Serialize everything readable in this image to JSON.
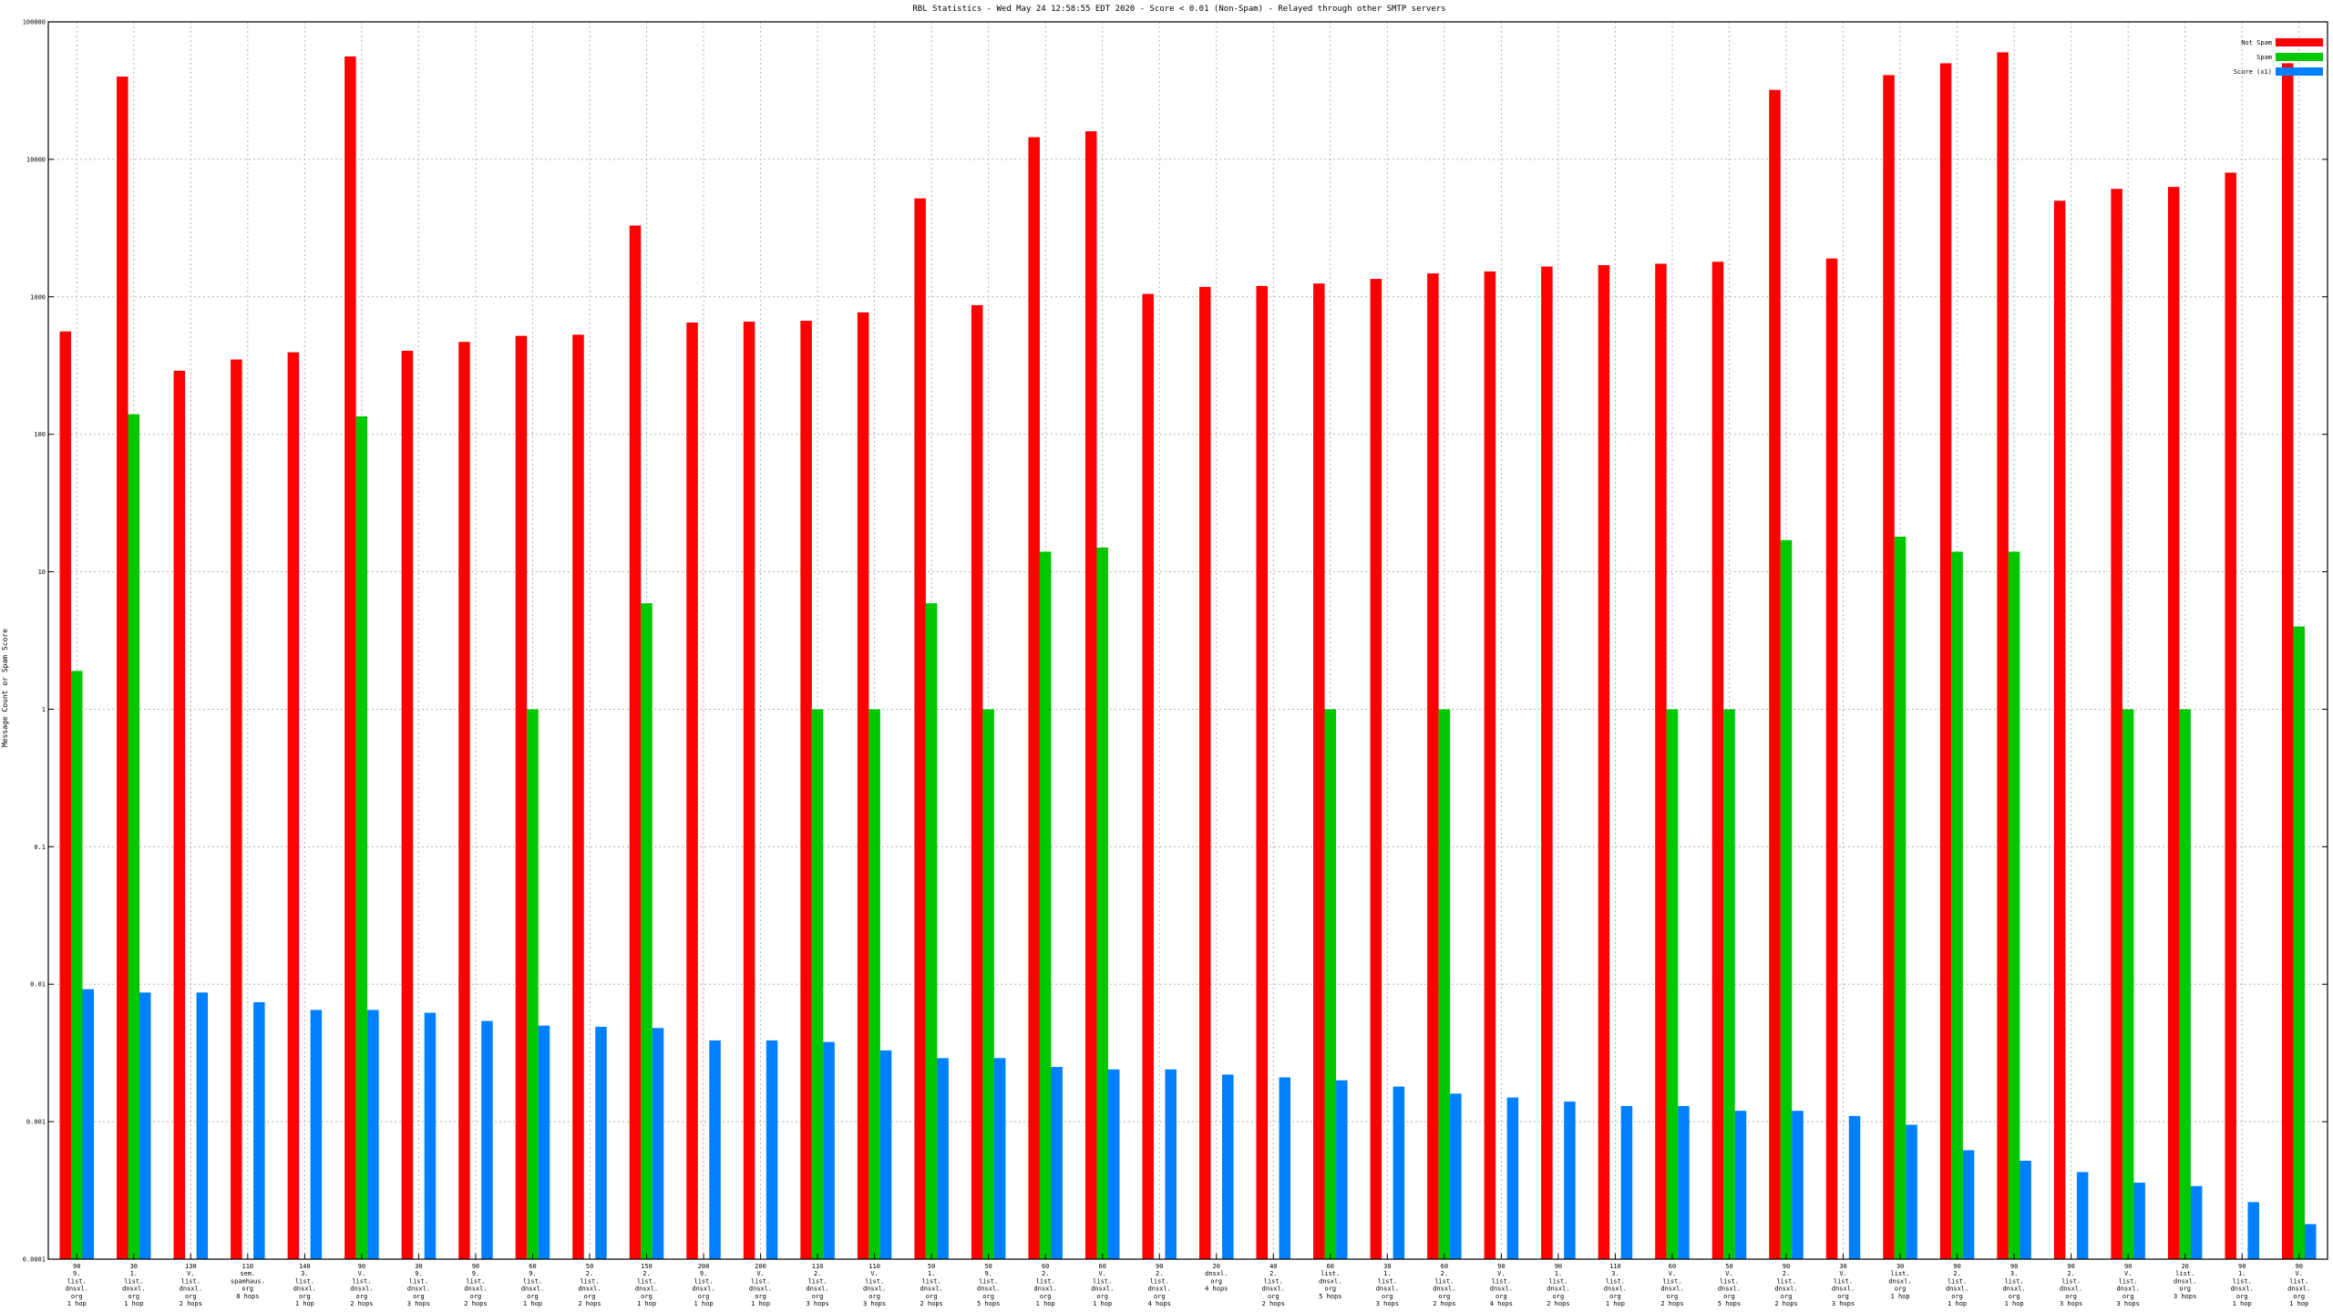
{
  "chart_data": {
    "type": "bar",
    "title": "RBL Statistics - Wed May 24 12:58:55 EDT 2020 - Score < 0.01 (Non-Spam) - Relayed through other SMTP servers",
    "ylabel": "Message Count or Spam Score",
    "xlabel": "",
    "yscale": "log",
    "ylim": [
      0.0001,
      100000
    ],
    "yticks": [
      "0.0001",
      "0.001",
      "0.01",
      "0.1",
      "1",
      "10",
      "100",
      "1000",
      "10000",
      "100000"
    ],
    "grid": true,
    "legend_position": "top-right",
    "colors": {
      "not_spam": "#ff0000",
      "spam": "#00c800",
      "score": "#0080ff"
    },
    "categories": [
      "90\n9.\nlist.\ndnsxl.\norg\n1 hop",
      "30\n1.\nlist.\ndnsxl.\norg\n1 hop",
      "130\nV.\nlist.\ndnsxl.\norg\n2 hops",
      "110\nsem.\nspamhaus.\norg\n8 hops",
      "140\n3.\nlist.\ndnsxl.\norg\n1 hop",
      "90\nV.\nlist.\ndnsxl.\norg\n2 hops",
      "30\n9.\nlist.\ndnsxl.\norg\n3 hops",
      "90\n9.\nlist.\ndnsxl.\norg\n2 hops",
      "60\n9.\nlist.\ndnsxl.\norg\n1 hop",
      "50\n2.\nlist.\ndnsxl.\norg\n2 hops",
      "150\n2.\nlist.\ndnsxl.\norg\n1 hop",
      "200\n9.\nlist.\ndnsxl.\norg\n1 hop",
      "200\nV.\nlist.\ndnsxl.\norg\n1 hop",
      "110\n2.\nlist.\ndnsxl.\norg\n3 hops",
      "110\nV.\nlist.\ndnsxl.\norg\n3 hops",
      "50\n1.\nlist.\ndnsxl.\norg\n2 hops",
      "50\n9.\nlist.\ndnsxl.\norg\n5 hops",
      "60\n2.\nlist.\ndnsxl.\norg\n1 hop",
      "60\nV.\nlist.\ndnsxl.\norg\n1 hop",
      "90\n2.\nlist.\ndnsxl.\norg\n4 hops",
      "20\ndnsxl.\norg\n4 hops",
      "40\n2.\nlist.\ndnsxl.\norg\n2 hops",
      "60\nlist.\ndnsxl.\norg\n5 hops",
      "30\n1.\nlist.\ndnsxl.\norg\n3 hops",
      "60\n2.\nlist.\ndnsxl.\norg\n2 hops",
      "90\nV.\nlist.\ndnsxl.\norg\n4 hops",
      "90\n1.\nlist.\ndnsxl.\norg\n2 hops",
      "110\n3.\nlist.\ndnsxl.\norg\n1 hop",
      "60\nV.\nlist.\ndnsxl.\norg\n2 hops",
      "50\nV.\nlist.\ndnsxl.\norg\n5 hops",
      "90\n2.\nlist.\ndnsxl.\norg\n2 hops",
      "30\nV.\nlist.\ndnsxl.\norg\n3 hops",
      "30\nlist.\ndnsxl.\norg\n1 hop",
      "90\n2.\nlist.\ndnsxl.\norg\n1 hop",
      "90\n3.\nlist.\ndnsxl.\norg\n1 hop",
      "90\n2.\nlist.\ndnsxl.\norg\n3 hops",
      "90\nV.\nlist.\ndnsxl.\norg\n3 hops",
      "20\nlist.\ndnsxl.\norg\n3 hops",
      "90\n1.\nlist.\ndnsxl.\norg\n1 hop",
      "90\nV.\nlist.\ndnsxl.\norg\n1 hop"
    ],
    "series": [
      {
        "name": "Not Spam",
        "values": [
          560,
          40000,
          290,
          350,
          395,
          56000,
          405,
          470,
          520,
          530,
          3300,
          650,
          660,
          670,
          770,
          5200,
          870,
          14500,
          16000,
          1050,
          1180,
          1200,
          1250,
          1350,
          1480,
          1530,
          1660,
          1700,
          1740,
          1800,
          32000,
          1900,
          41000,
          50000,
          60000,
          5000,
          6100,
          6300,
          8000,
          50000
        ]
      },
      {
        "name": "Spam",
        "values": [
          1.9,
          140,
          0,
          0,
          0,
          135,
          0,
          0,
          1,
          0,
          5.9,
          0,
          0,
          1,
          1,
          5.9,
          1,
          14,
          15,
          0,
          0,
          0,
          1,
          0,
          1,
          0,
          0,
          0,
          1,
          1,
          17,
          0,
          18,
          14,
          14,
          0,
          1,
          1,
          0,
          4
        ]
      },
      {
        "name": "Score (x1)",
        "values": [
          0.0092,
          0.0087,
          0.0087,
          0.0074,
          0.0065,
          0.0065,
          0.0062,
          0.0054,
          0.005,
          0.0049,
          0.0048,
          0.0039,
          0.0039,
          0.0038,
          0.0033,
          0.0029,
          0.0029,
          0.0025,
          0.0024,
          0.0024,
          0.0022,
          0.0021,
          0.002,
          0.0018,
          0.0016,
          0.0015,
          0.0014,
          0.0013,
          0.0013,
          0.0012,
          0.0012,
          0.0011,
          0.00095,
          0.00062,
          0.00052,
          0.00043,
          0.00036,
          0.00034,
          0.00026,
          0.00018
        ]
      }
    ]
  }
}
